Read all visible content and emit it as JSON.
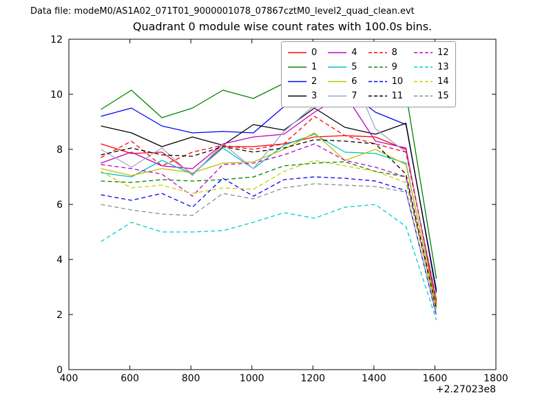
{
  "header": {
    "data_file_label": "Data file: modeM0/AS1A02_071T01_9000001078_07867cztM0_level2_quad_clean.evt"
  },
  "chart_data": {
    "type": "line",
    "title": "Quadrant 0 module wise count rates with 100.0s bins.",
    "xlabel": "",
    "ylabel": "",
    "x_offset_label": "+2.27023e8",
    "xlim": [
      400,
      1800
    ],
    "ylim": [
      0,
      12
    ],
    "xticks": [
      400,
      600,
      800,
      1000,
      1200,
      1400,
      1600,
      1800
    ],
    "yticks": [
      0,
      2,
      4,
      6,
      8,
      10,
      12
    ],
    "grid": false,
    "legend_position": "upper right",
    "legend_columns": 4,
    "x": [
      505,
      605,
      705,
      805,
      905,
      1005,
      1105,
      1205,
      1305,
      1405,
      1505,
      1605
    ],
    "series": [
      {
        "name": "module-0",
        "label": "0",
        "color": "#ff0000",
        "style": "solid",
        "values": [
          8.2,
          7.85,
          7.9,
          7.1,
          8.1,
          8.1,
          8.2,
          8.45,
          8.5,
          8.45,
          8.0,
          2.4
        ]
      },
      {
        "name": "module-1",
        "label": "1",
        "color": "#008000",
        "style": "solid",
        "values": [
          9.45,
          10.15,
          9.15,
          9.5,
          10.15,
          9.85,
          10.4,
          10.9,
          11.45,
          10.5,
          10.05,
          3.3
        ]
      },
      {
        "name": "module-2",
        "label": "2",
        "color": "#0000ff",
        "style": "solid",
        "values": [
          9.2,
          9.5,
          8.85,
          8.6,
          8.65,
          8.6,
          9.55,
          9.6,
          10.2,
          9.35,
          8.9,
          2.9
        ]
      },
      {
        "name": "module-3",
        "label": "3",
        "color": "#000000",
        "style": "solid",
        "values": [
          8.85,
          8.6,
          8.1,
          8.45,
          8.15,
          8.9,
          8.7,
          9.5,
          8.8,
          8.55,
          8.95,
          2.8
        ]
      },
      {
        "name": "module-4",
        "label": "4",
        "color": "#bf00bf",
        "style": "solid",
        "values": [
          7.5,
          7.9,
          7.4,
          7.3,
          8.2,
          8.45,
          8.55,
          9.35,
          10.0,
          8.3,
          8.05,
          2.35
        ]
      },
      {
        "name": "module-5",
        "label": "5",
        "color": "#00bfbf",
        "style": "solid",
        "values": [
          7.15,
          7.0,
          7.6,
          7.1,
          8.05,
          7.3,
          8.15,
          8.55,
          7.9,
          7.85,
          7.5,
          2.25
        ]
      },
      {
        "name": "module-6",
        "label": "6",
        "color": "#bfbf00",
        "style": "solid",
        "values": [
          7.3,
          7.05,
          7.3,
          7.15,
          7.5,
          7.55,
          8.0,
          8.6,
          7.6,
          8.0,
          7.45,
          2.3
        ]
      },
      {
        "name": "module-7",
        "label": "7",
        "color": "#a0a0d0",
        "style": "solid",
        "values": [
          8.0,
          7.35,
          8.05,
          7.05,
          8.2,
          7.3,
          8.65,
          9.6,
          11.35,
          8.75,
          7.9,
          2.6
        ]
      },
      {
        "name": "module-8",
        "label": "8",
        "color": "#ff0000",
        "style": "dashed",
        "values": [
          7.7,
          8.3,
          7.4,
          7.9,
          8.15,
          8.0,
          8.2,
          9.2,
          8.5,
          8.2,
          7.9,
          2.5
        ]
      },
      {
        "name": "module-9",
        "label": "9",
        "color": "#008000",
        "style": "dashed",
        "values": [
          6.85,
          6.8,
          6.9,
          6.85,
          6.9,
          7.0,
          7.4,
          7.5,
          7.55,
          7.2,
          7.0,
          2.1
        ]
      },
      {
        "name": "module-10",
        "label": "10",
        "color": "#0000ff",
        "style": "dashed",
        "values": [
          6.35,
          6.15,
          6.4,
          5.9,
          6.95,
          6.3,
          6.9,
          7.0,
          6.95,
          6.85,
          6.5,
          1.95
        ]
      },
      {
        "name": "module-11",
        "label": "11",
        "color": "#000000",
        "style": "dashed",
        "values": [
          7.8,
          8.05,
          7.8,
          7.75,
          8.1,
          7.9,
          8.05,
          8.35,
          8.3,
          8.2,
          7.1,
          2.2
        ]
      },
      {
        "name": "module-12",
        "label": "12",
        "color": "#bf00bf",
        "style": "dashed",
        "values": [
          7.45,
          7.3,
          7.1,
          6.3,
          7.45,
          7.5,
          7.8,
          8.2,
          7.6,
          7.35,
          7.0,
          2.1
        ]
      },
      {
        "name": "module-13",
        "label": "13",
        "color": "#00cccc",
        "style": "dashed",
        "values": [
          4.65,
          5.35,
          5.0,
          5.0,
          5.05,
          5.35,
          5.7,
          5.5,
          5.9,
          6.0,
          5.2,
          1.8
        ]
      },
      {
        "name": "module-14",
        "label": "14",
        "color": "#cccc00",
        "style": "dashed",
        "values": [
          7.2,
          6.6,
          6.7,
          6.4,
          6.6,
          6.55,
          7.2,
          7.6,
          7.4,
          7.2,
          6.8,
          2.15
        ]
      },
      {
        "name": "module-15",
        "label": "15",
        "color": "#8c8c8c",
        "style": "dashed",
        "values": [
          6.0,
          5.8,
          5.65,
          5.6,
          6.4,
          6.2,
          6.6,
          6.75,
          6.7,
          6.65,
          6.45,
          2.0
        ]
      }
    ]
  }
}
